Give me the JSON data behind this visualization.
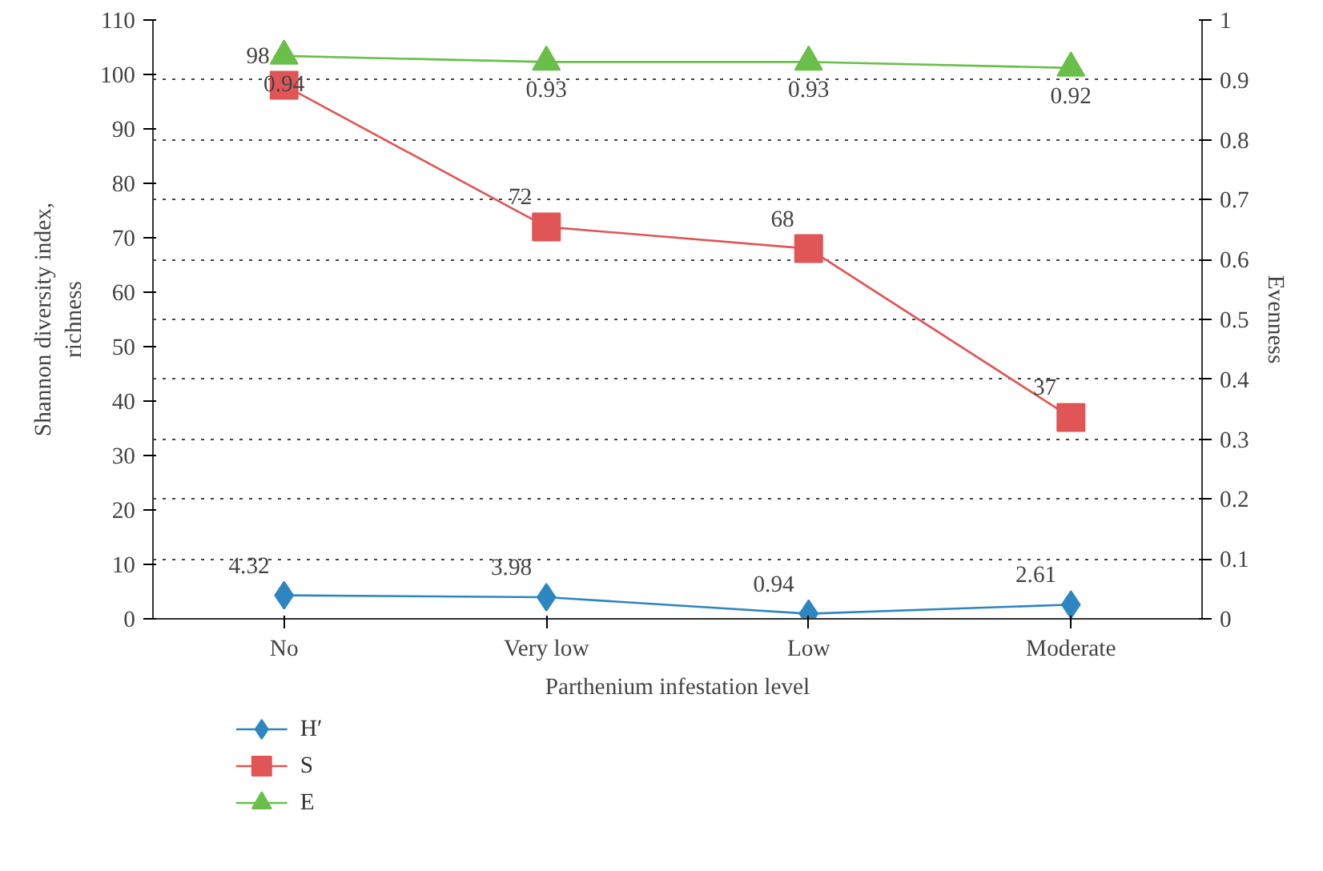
{
  "chart_data": {
    "type": "line",
    "xlabel": "Parthenium infestation level",
    "ylabel": "Shannon diversity index,\nrichness",
    "y2label": "Evenness",
    "categories": [
      "No",
      "Very low",
      "Low",
      "Moderate"
    ],
    "series": [
      {
        "name": "H′",
        "color": "#2e86c1",
        "marker": "diamond",
        "values": [
          4.32,
          3.98,
          0.94,
          2.61
        ]
      },
      {
        "name": "S",
        "color": "#e05555",
        "marker": "square",
        "values": [
          98,
          72,
          68,
          37
        ]
      },
      {
        "name": "E",
        "color": "#6abf4b",
        "marker": "triangle",
        "axis": "y2",
        "values": [
          0.94,
          0.93,
          0.93,
          0.92
        ]
      }
    ],
    "ylim": [
      0,
      110
    ],
    "yticks": [
      0,
      10,
      20,
      30,
      40,
      50,
      60,
      70,
      80,
      90,
      100,
      110
    ],
    "y2lim": [
      0,
      1
    ],
    "y2ticks": [
      0,
      0.1,
      0.2,
      0.3,
      0.4,
      0.5,
      0.6,
      0.7,
      0.8,
      0.9,
      1
    ],
    "grid": "y",
    "legend": "bottom",
    "data_labels": true,
    "line_style": "solid"
  }
}
